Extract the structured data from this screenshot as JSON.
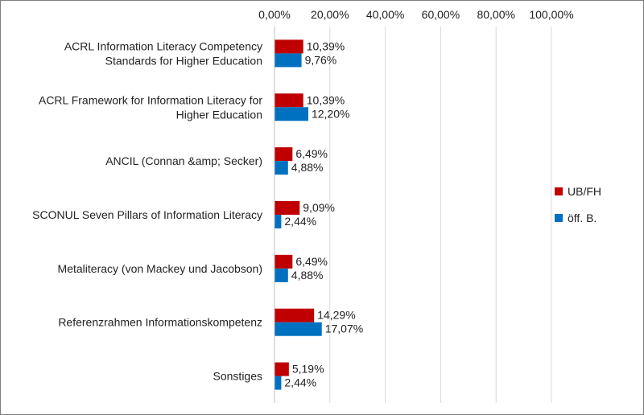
{
  "chart_data": {
    "type": "bar",
    "orientation": "horizontal",
    "categories": [
      [
        "ACRL Information Literacy Competency",
        "Standards for Higher Education"
      ],
      [
        "ACRL Framework for Information Literacy for",
        "Higher Education"
      ],
      [
        "ANCIL (Connan &amp; Secker)"
      ],
      [
        "SCONUL Seven Pillars of Information Literacy"
      ],
      [
        "Metaliteracy (von Mackey und Jacobson)"
      ],
      [
        "Referenzrahmen Informationskompetenz"
      ],
      [
        "Sonstiges"
      ]
    ],
    "series": [
      {
        "name": "UB/FH",
        "color": "#c00000",
        "values": [
          10.39,
          10.39,
          6.49,
          9.09,
          6.49,
          14.29,
          5.19
        ],
        "labels": [
          "10,39%",
          "10,39%",
          "6,49%",
          "9,09%",
          "6,49%",
          "14,29%",
          "5,19%"
        ]
      },
      {
        "name": "öff. B.",
        "color": "#0070c0",
        "values": [
          9.76,
          12.2,
          4.88,
          2.44,
          4.88,
          17.07,
          2.44
        ],
        "labels": [
          "9,76%",
          "12,20%",
          "4,88%",
          "2,44%",
          "4,88%",
          "17,07%",
          "2,44%"
        ]
      }
    ],
    "x_axis": {
      "ticks": [
        0,
        20,
        40,
        60,
        80,
        100
      ],
      "tick_labels": [
        "0,00%",
        "20,00%",
        "40,00%",
        "60,00%",
        "80,00%",
        "100,00%"
      ],
      "position": "top",
      "xlim": [
        0,
        100
      ]
    },
    "grid": true,
    "legend_position": "right",
    "title": "",
    "xlabel": "",
    "ylabel": ""
  }
}
